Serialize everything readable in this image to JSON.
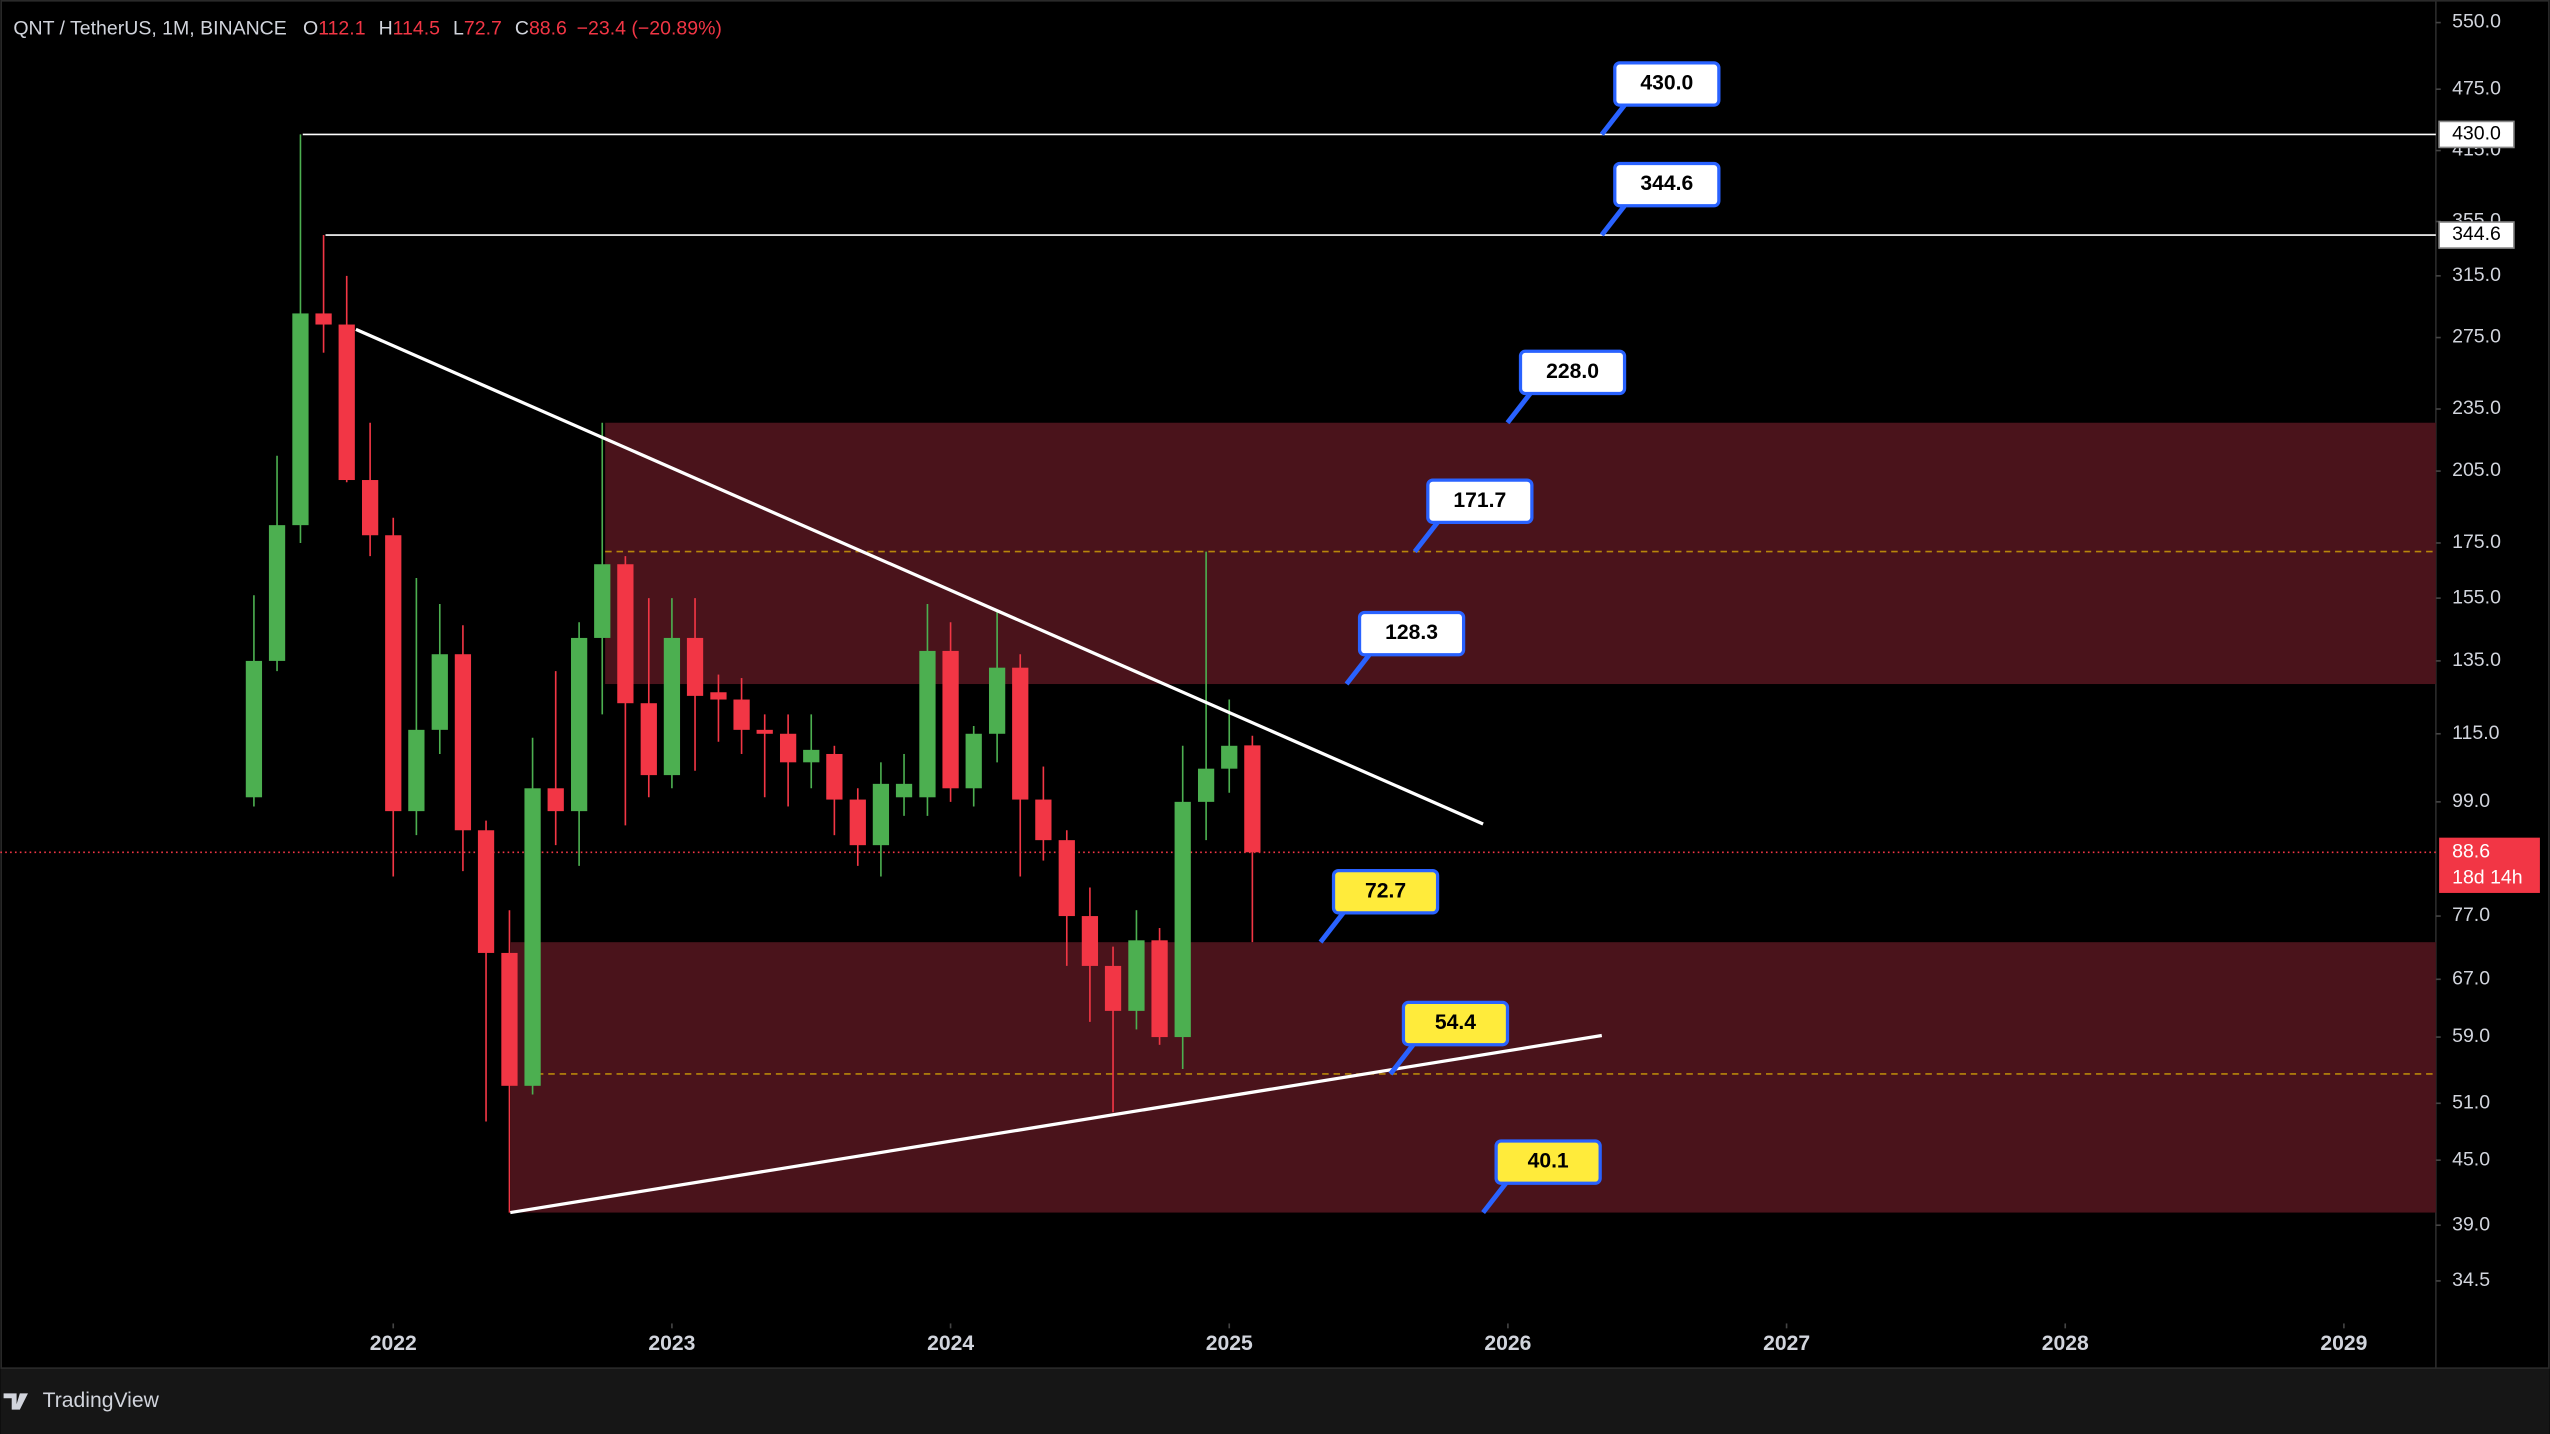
{
  "header": {
    "symbol": "QNT / TetherUS, 1M, BINANCE",
    "keys": [
      "O",
      "H",
      "L",
      "C"
    ],
    "change": "−23.4 (−20.89%)"
  },
  "chart_data": {
    "type": "candlestick",
    "x": [
      2021.5,
      2021.583,
      2021.667,
      2021.75,
      2021.833,
      2021.917,
      2022,
      2022.083,
      2022.167,
      2022.25,
      2022.333,
      2022.417,
      2022.5,
      2022.583,
      2022.667,
      2022.75,
      2022.833,
      2022.917,
      2023,
      2023.083,
      2023.167,
      2023.25,
      2023.333,
      2023.417,
      2023.5,
      2023.583,
      2023.667,
      2023.75,
      2023.833,
      2023.917,
      2024,
      2024.083,
      2024.167,
      2024.25,
      2024.333,
      2024.417,
      2024.5,
      2024.583,
      2024.667,
      2024.75,
      2024.833,
      2024.917,
      2025,
      2025.083
    ],
    "open": [
      100,
      135,
      182,
      290,
      283,
      201,
      178,
      97,
      116,
      137,
      93,
      71,
      53,
      102,
      97,
      142,
      167,
      123,
      105,
      142,
      126,
      124,
      116,
      115,
      108,
      110,
      99.5,
      90,
      100,
      100,
      138,
      102,
      115,
      133,
      99.5,
      91,
      77,
      69,
      62.5,
      73,
      59,
      99,
      106.5,
      112.1
    ],
    "high": [
      156,
      212,
      430,
      344.6,
      315,
      228,
      185,
      162,
      153,
      146,
      95,
      78,
      114,
      132,
      147,
      228,
      170,
      155,
      155,
      155,
      131,
      130,
      120,
      120,
      120,
      112,
      102,
      108,
      110,
      153,
      147,
      117,
      151,
      137,
      107,
      93,
      82,
      72,
      78,
      75,
      112,
      171.7,
      124,
      114.5
    ],
    "low": [
      98,
      132,
      175,
      266,
      200,
      170,
      84,
      92,
      110,
      85,
      49,
      40.1,
      52,
      90,
      86,
      120,
      94,
      100,
      102,
      106,
      113,
      110,
      100,
      98,
      102,
      92,
      86,
      84,
      96,
      96,
      99,
      98,
      108,
      84,
      87,
      69,
      61,
      50,
      60,
      58,
      55,
      91,
      101,
      72.7
    ],
    "close": [
      135,
      182,
      290,
      283,
      201,
      178,
      97,
      116,
      137,
      93,
      71,
      53,
      102,
      97,
      142,
      167,
      123,
      105,
      142,
      125,
      124,
      116,
      115,
      108,
      111,
      99.5,
      90,
      103,
      103,
      138,
      102,
      115,
      133,
      99.5,
      91,
      77,
      69,
      62.5,
      73,
      59,
      99,
      106.5,
      112,
      88.6
    ],
    "up_color": "#4caf50",
    "down_color": "#f23645",
    "xlim": [
      2020.59,
      2029.33
    ],
    "xticks": [
      2022,
      2023,
      2024,
      2025,
      2026,
      2027,
      2028,
      2029
    ],
    "ylim": [
      32.1,
      578
    ],
    "log_scale": true,
    "yticks": [
      {
        "value": 550,
        "label": "550.0"
      },
      {
        "value": 475,
        "label": "475.0"
      },
      {
        "value": 415,
        "label": "415.0"
      },
      {
        "value": 355,
        "label": "355.0"
      },
      {
        "value": 315,
        "label": "315.0"
      },
      {
        "value": 275,
        "label": "275.0"
      },
      {
        "value": 235,
        "label": "235.0"
      },
      {
        "value": 205,
        "label": "205.0"
      },
      {
        "value": 175,
        "label": "175.0"
      },
      {
        "value": 155,
        "label": "155.0"
      },
      {
        "value": 135,
        "label": "135.0"
      },
      {
        "value": 115,
        "label": "115.0"
      },
      {
        "value": 99,
        "label": "99.0"
      },
      {
        "value": 77,
        "label": "77.0"
      },
      {
        "value": 67,
        "label": "67.0"
      },
      {
        "value": 59,
        "label": "59.0"
      },
      {
        "value": 51,
        "label": "51.0"
      },
      {
        "value": 45,
        "label": "45.0"
      },
      {
        "value": 39,
        "label": "39.0"
      },
      {
        "value": 34.5,
        "label": "34.5"
      }
    ],
    "levels": [
      {
        "value": 430,
        "label": "430.0",
        "color": "#ffffff"
      },
      {
        "value": 344.6,
        "label": "344.6",
        "color": "#ffffff"
      },
      {
        "value": 228,
        "label": "228.0",
        "color": "#ffffff"
      },
      {
        "value": 171.7,
        "label": "171.7",
        "color": "#ffffff"
      },
      {
        "value": 128.3,
        "label": "128.3",
        "color": "#ffffff"
      },
      {
        "value": 72.7,
        "label": "72.7",
        "color": "#ffeb3b"
      },
      {
        "value": 54.4,
        "label": "54.4",
        "color": "#ffeb3b"
      },
      {
        "value": 40.1,
        "label": "40.1",
        "color": "#ffeb3b"
      }
    ],
    "trendlines": [
      {
        "x": [
          2021.866,
          2025.911
        ],
        "y": [
          280,
          94.3
        ]
      },
      {
        "x": [
          2022.42,
          2026.337
        ],
        "y": [
          40.1,
          59.2
        ]
      }
    ],
    "countdown": "18d 14h"
  },
  "footer": {
    "brand": "TradingView"
  }
}
